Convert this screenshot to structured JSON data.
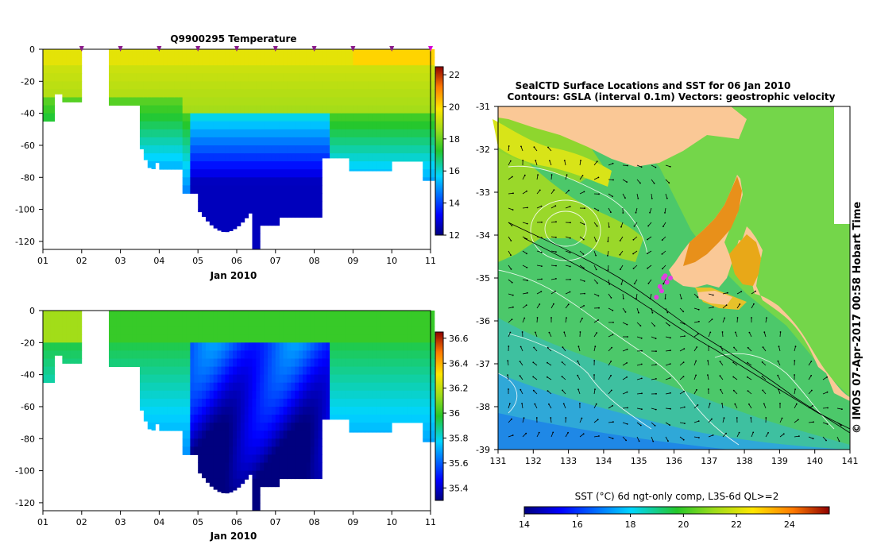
{
  "chart_data": [
    {
      "type": "heatmap",
      "title": "Q9900295  Temperature",
      "xlabel": "Jan 2010",
      "x_ticks": [
        "01",
        "02",
        "03",
        "04",
        "05",
        "06",
        "07",
        "08",
        "09",
        "10",
        "11"
      ],
      "y_ticks": [
        0,
        -20,
        -40,
        -60,
        -80,
        -100,
        -120
      ],
      "ylim": [
        -125,
        0
      ],
      "colorbar": {
        "min": 12,
        "max": 22.5,
        "ticks": [
          22,
          20,
          18,
          16,
          14,
          12
        ]
      },
      "profile_markers_day": [
        2,
        3,
        4,
        5,
        6,
        7,
        8,
        9,
        10,
        11
      ]
    },
    {
      "type": "heatmap",
      "title": "",
      "xlabel": "Jan 2010",
      "x_ticks": [
        "01",
        "02",
        "03",
        "04",
        "05",
        "06",
        "07",
        "08",
        "09",
        "10",
        "11"
      ],
      "y_ticks": [
        0,
        -20,
        -40,
        -60,
        -80,
        -100,
        -120
      ],
      "ylim": [
        -125,
        0
      ],
      "colorbar": {
        "min": 35.3,
        "max": 36.65,
        "ticks": [
          36.6,
          36.4,
          36.2,
          36,
          35.8,
          35.6,
          35.4
        ]
      }
    },
    {
      "type": "heatmap",
      "title_line1": "SealCTD Surface Locations and SST for 06 Jan 2010",
      "title_line2": "Contours: GSLA (interval 0.1m) Vectors: geostrophic velocity",
      "x_ticks": [
        131,
        132,
        133,
        134,
        135,
        136,
        137,
        138,
        139,
        140,
        141
      ],
      "y_ticks": [
        -31,
        -32,
        -33,
        -34,
        -35,
        -36,
        -37,
        -38,
        -39
      ],
      "xlim": [
        131,
        141
      ],
      "ylim": [
        -39,
        -31
      ],
      "colorbar": {
        "min": 14,
        "max": 25.5,
        "ticks": [
          14,
          16,
          18,
          20,
          22,
          24
        ],
        "label": "SST (°C) 6d ngt-only comp, L3S-6d QL>=2"
      },
      "seal_positions": [
        [
          135.7,
          -35.0
        ],
        [
          135.8,
          -35.1
        ],
        [
          135.6,
          -35.2
        ],
        [
          135.9,
          -35.0
        ],
        [
          135.5,
          -35.45
        ],
        [
          135.65,
          -35.3
        ],
        [
          135.75,
          -34.95
        ]
      ]
    }
  ],
  "credit": "© IMOS 07-Apr-2017 00:58 Hobart Time"
}
